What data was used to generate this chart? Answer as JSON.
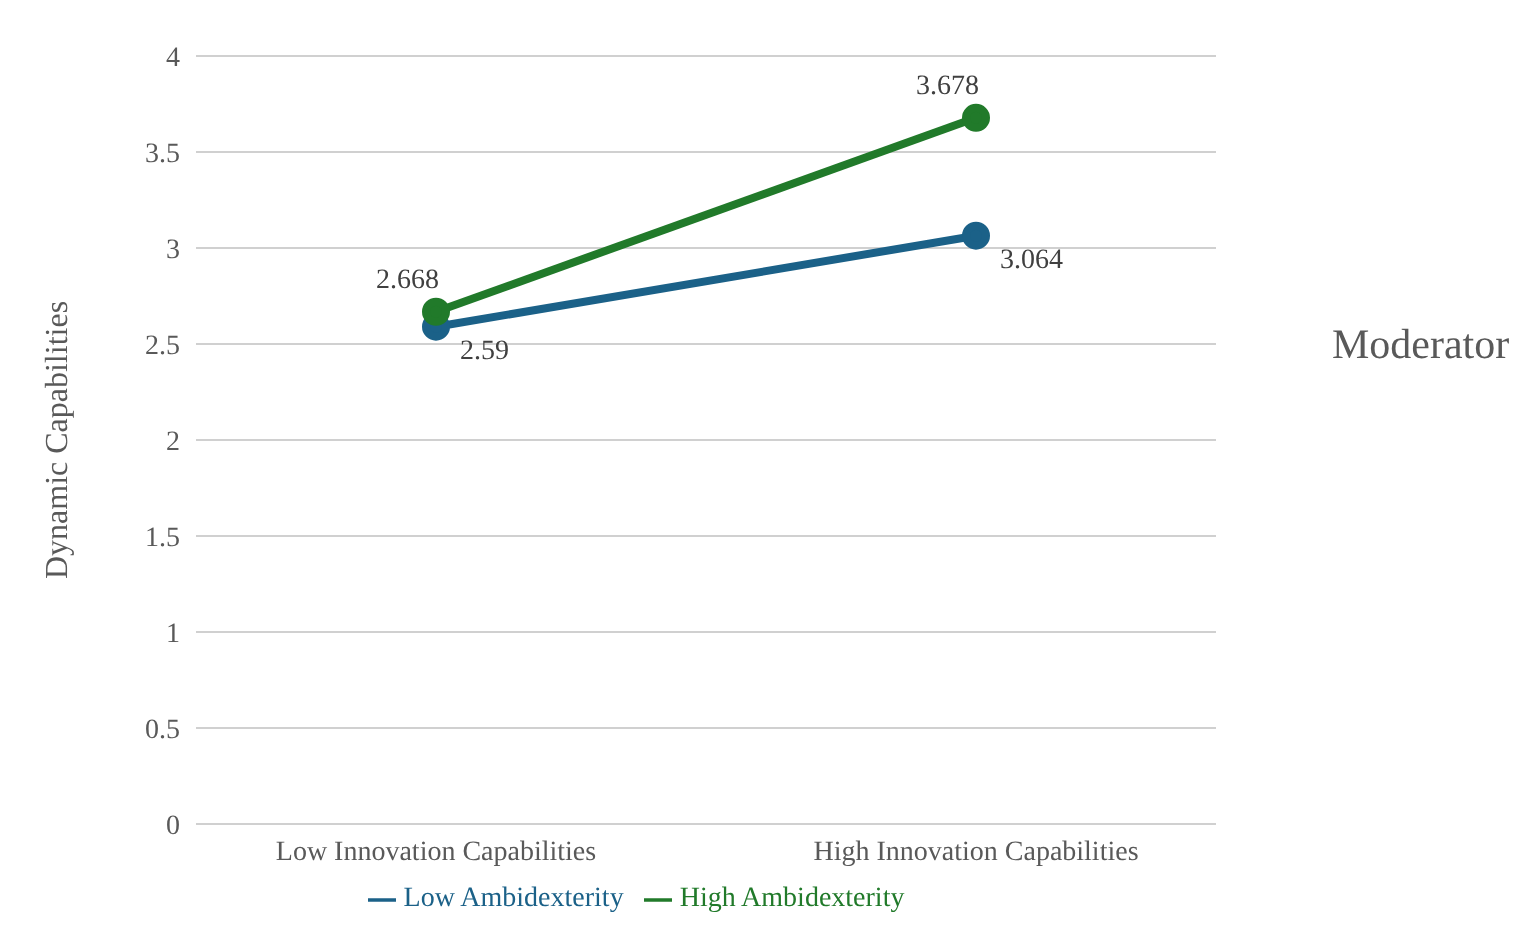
{
  "chart_data": {
    "type": "line",
    "ylabel": "Dynamic Capabilities",
    "legend_title": "Moderator",
    "categories": [
      "Low Innovation Capabilities",
      "High Innovation Capabilities"
    ],
    "series": [
      {
        "name": "Low Ambidexterity",
        "color": "#1b6188",
        "values": [
          2.59,
          3.064
        ]
      },
      {
        "name": "High Ambidexterity",
        "color": "#217a2a",
        "values": [
          2.668,
          3.678
        ]
      }
    ],
    "ylim": [
      0,
      4
    ],
    "yticks": [
      0,
      0.5,
      1,
      1.5,
      2,
      2.5,
      3,
      3.5,
      4
    ],
    "grid": "y",
    "legend": "bottom",
    "marker": "circle",
    "line_style": "solid",
    "data_labels": true
  }
}
